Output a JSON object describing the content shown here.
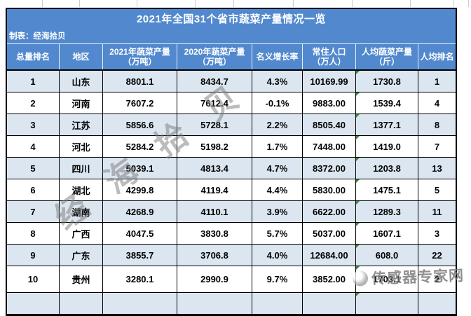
{
  "page": {
    "title": "2021年全国31个省市蔬菜产量情况一览",
    "credit": "制表：经海拾贝"
  },
  "table": {
    "headers": [
      {
        "line1": "总量排名",
        "line2": ""
      },
      {
        "line1": "地区",
        "line2": ""
      },
      {
        "line1": "2021年蔬菜产量",
        "line2": "（万吨）"
      },
      {
        "line1": "2020年蔬菜产量",
        "line2": "（万吨）"
      },
      {
        "line1": "名义增长率",
        "line2": ""
      },
      {
        "line1": "常住人口",
        "line2": "（万人）"
      },
      {
        "line1": "人均蔬菜产量",
        "line2": "（斤）"
      },
      {
        "line1": "人均排名",
        "line2": ""
      }
    ],
    "rows": [
      {
        "rank": "1",
        "region": "山东",
        "prod2021": "8801.1",
        "prod2020": "8434.7",
        "growth": "4.3%",
        "population": "10169.99",
        "per_capita": "1730.8",
        "per_capita_rank": "1"
      },
      {
        "rank": "2",
        "region": "河南",
        "prod2021": "7607.2",
        "prod2020": "7612.4",
        "growth": "-0.1%",
        "population": "9883.00",
        "per_capita": "1539.4",
        "per_capita_rank": "4"
      },
      {
        "rank": "3",
        "region": "江苏",
        "prod2021": "5856.6",
        "prod2020": "5728.1",
        "growth": "2.2%",
        "population": "8505.40",
        "per_capita": "1377.1",
        "per_capita_rank": "8"
      },
      {
        "rank": "4",
        "region": "河北",
        "prod2021": "5284.2",
        "prod2020": "5198.2",
        "growth": "1.7%",
        "population": "7448.00",
        "per_capita": "1419.0",
        "per_capita_rank": "7"
      },
      {
        "rank": "5",
        "region": "四川",
        "prod2021": "5039.1",
        "prod2020": "4813.4",
        "growth": "4.7%",
        "population": "8372.00",
        "per_capita": "1203.8",
        "per_capita_rank": "13"
      },
      {
        "rank": "6",
        "region": "湖北",
        "prod2021": "4299.8",
        "prod2020": "4119.4",
        "growth": "4.4%",
        "population": "5830.00",
        "per_capita": "1475.1",
        "per_capita_rank": "5"
      },
      {
        "rank": "7",
        "region": "湖南",
        "prod2021": "4268.9",
        "prod2020": "4110.1",
        "growth": "3.9%",
        "population": "6622.00",
        "per_capita": "1289.3",
        "per_capita_rank": "11"
      },
      {
        "rank": "8",
        "region": "广西",
        "prod2021": "4047.5",
        "prod2020": "3830.8",
        "growth": "5.7%",
        "population": "5037.00",
        "per_capita": "1607.1",
        "per_capita_rank": "3"
      },
      {
        "rank": "9",
        "region": "广东",
        "prod2021": "3855.7",
        "prod2020": "3706.8",
        "growth": "4.0%",
        "population": "12684.00",
        "per_capita": "608.0",
        "per_capita_rank": "22"
      },
      {
        "rank": "10",
        "region": "贵州",
        "prod2021": "3280.1",
        "prod2020": "2990.9",
        "growth": "9.7%",
        "population": "3852.00",
        "per_capita": "1703.1",
        "per_capita_rank": "2"
      }
    ],
    "partial_bottom_row_visible": true
  },
  "watermarks": {
    "diagonal_text": "经海拾贝",
    "site_text": "传感器专家网"
  },
  "colors": {
    "header_blue": "#5289ce",
    "stripe_blue": "#dce6f1",
    "row_white": "#ffffff",
    "border_black": "#000000",
    "text_white": "#ffffff",
    "error_triangle_green": "#2e8b2e",
    "watermark_gray": "#7a7a7a"
  }
}
